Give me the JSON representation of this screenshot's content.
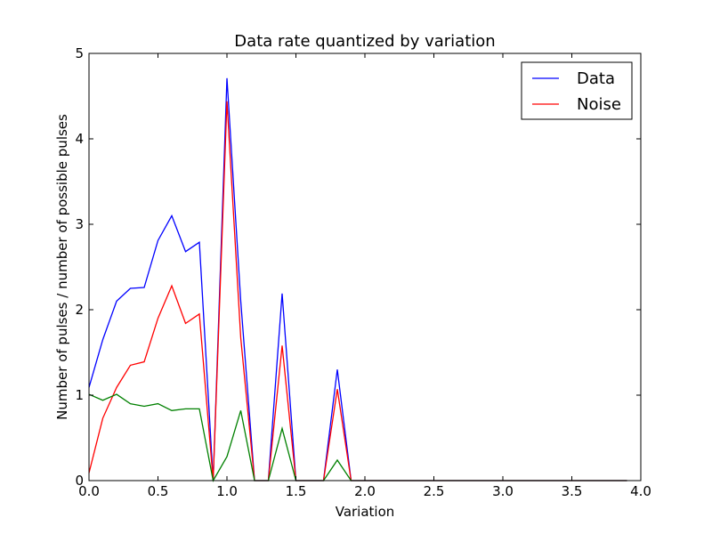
{
  "chart_data": {
    "type": "line",
    "title": "Data rate quantized by variation",
    "xlabel": "Variation",
    "ylabel": "Number of pulses / number of possible pulses",
    "xlim": [
      0.0,
      4.0
    ],
    "ylim": [
      0,
      5
    ],
    "xticks": [
      0.0,
      0.5,
      1.0,
      1.5,
      2.0,
      2.5,
      3.0,
      3.5,
      4.0
    ],
    "xtick_labels": [
      "0.0",
      "0.5",
      "1.0",
      "1.5",
      "2.0",
      "2.5",
      "3.0",
      "3.5",
      "4.0"
    ],
    "yticks": [
      0,
      1,
      2,
      3,
      4,
      5
    ],
    "ytick_labels": [
      "0",
      "1",
      "2",
      "3",
      "4",
      "5"
    ],
    "grid": false,
    "legend_position": "top-right",
    "x": [
      0.0,
      0.1,
      0.2,
      0.3,
      0.4,
      0.5,
      0.6,
      0.7,
      0.8,
      0.9,
      1.0,
      1.1,
      1.2,
      1.3,
      1.4,
      1.5,
      1.6,
      1.7,
      1.8,
      1.9,
      2.0,
      2.1,
      2.2,
      2.3,
      2.4,
      2.5,
      2.6,
      2.7,
      2.8,
      2.9,
      3.0,
      3.1,
      3.2,
      3.3,
      3.4,
      3.5,
      3.6,
      3.7,
      3.8,
      3.9
    ],
    "series": [
      {
        "name": "Data",
        "color": "#0000ff",
        "in_legend": true,
        "values": [
          1.09,
          1.65,
          2.1,
          2.25,
          2.26,
          2.81,
          3.1,
          2.68,
          2.79,
          0.0,
          4.71,
          2.1,
          0.0,
          0.0,
          2.19,
          0.0,
          0.0,
          0.0,
          1.3,
          0.0,
          0.0,
          0.0,
          0.0,
          0.0,
          0.0,
          0.0,
          0.0,
          0.0,
          0.0,
          0.0,
          0.0,
          0.0,
          0.0,
          0.0,
          0.0,
          0.0,
          0.0,
          0.0,
          0.0,
          0.0
        ]
      },
      {
        "name": "Noise",
        "color": "#ff0000",
        "in_legend": true,
        "values": [
          0.09,
          0.73,
          1.09,
          1.35,
          1.39,
          1.9,
          2.28,
          1.84,
          1.95,
          0.0,
          4.44,
          1.67,
          0.0,
          0.0,
          1.58,
          0.0,
          0.0,
          0.0,
          1.07,
          0.0,
          0.0,
          0.0,
          0.0,
          0.0,
          0.0,
          0.0,
          0.0,
          0.0,
          0.0,
          0.0,
          0.0,
          0.0,
          0.0,
          0.0,
          0.0,
          0.0,
          0.0,
          0.0,
          0.0,
          0.0
        ]
      },
      {
        "name": "",
        "color": "#008000",
        "in_legend": false,
        "values": [
          1.01,
          0.94,
          1.01,
          0.9,
          0.87,
          0.9,
          0.82,
          0.84,
          0.84,
          0.0,
          0.28,
          0.82,
          0.0,
          0.0,
          0.61,
          0.0,
          0.0,
          0.0,
          0.24,
          0.0,
          0.0,
          0.0,
          0.0,
          0.0,
          0.0,
          0.0,
          0.0,
          0.0,
          0.0,
          0.0,
          0.0,
          0.0,
          0.0,
          0.0,
          0.0,
          0.0,
          0.0,
          0.0,
          0.0,
          0.0
        ]
      }
    ]
  }
}
